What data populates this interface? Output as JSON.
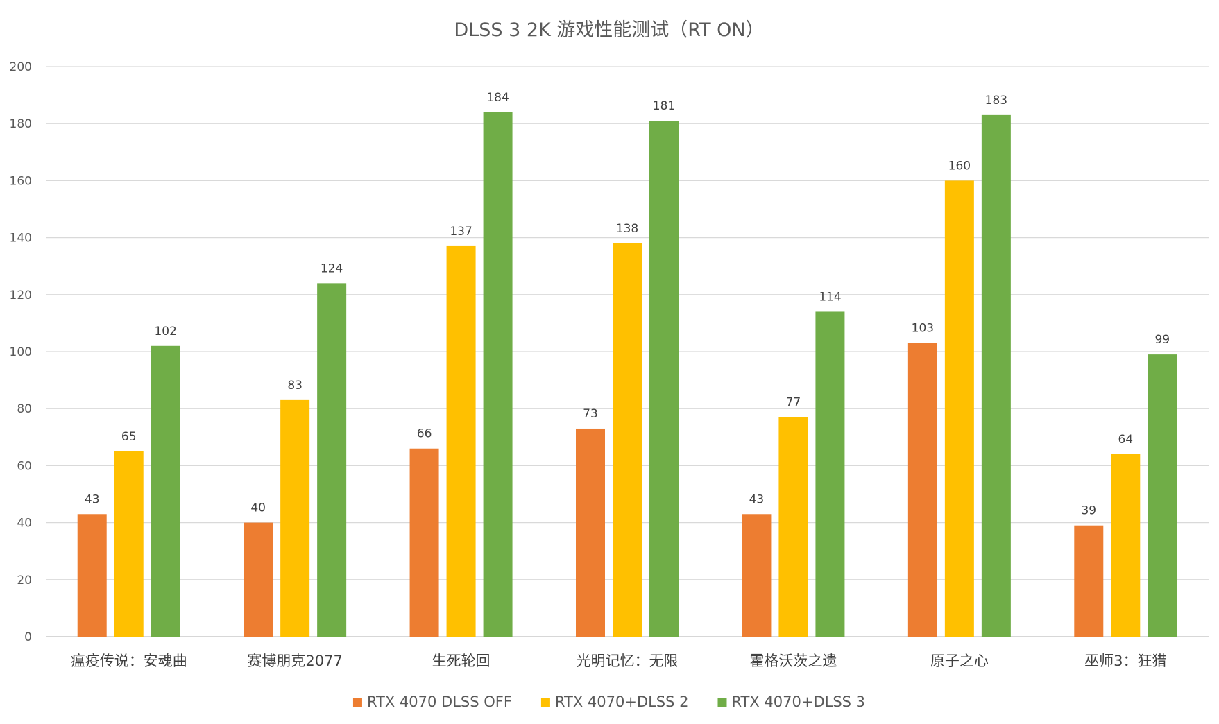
{
  "chart_data": {
    "type": "bar",
    "title": "DLSS 3 2K 游戏性能测试（RT ON）",
    "xlabel": "",
    "ylabel": "",
    "ylim": [
      0,
      200
    ],
    "yticks": [
      0,
      20,
      40,
      60,
      80,
      100,
      120,
      140,
      160,
      180,
      200
    ],
    "grid": true,
    "legend_position": "bottom",
    "categories": [
      "瘟疫传说：安魂曲",
      "赛博朋克2077",
      "生死轮回",
      "光明记忆：无限",
      "霍格沃茨之遗",
      "原子之心",
      "巫师3：狂猎"
    ],
    "series": [
      {
        "name": "RTX 4070 DLSS OFF",
        "color": "#ed7d31",
        "values": [
          43,
          40,
          66,
          73,
          43,
          103,
          39
        ]
      },
      {
        "name": "RTX 4070+DLSS 2",
        "color": "#ffc000",
        "values": [
          65,
          83,
          137,
          138,
          77,
          160,
          64
        ]
      },
      {
        "name": "RTX 4070+DLSS 3",
        "color": "#70ad47",
        "values": [
          102,
          124,
          184,
          181,
          114,
          183,
          99
        ]
      }
    ]
  }
}
